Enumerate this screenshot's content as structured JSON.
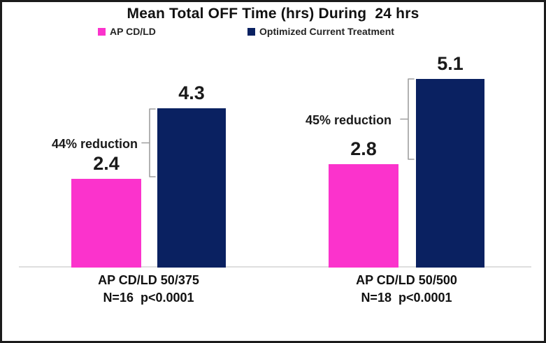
{
  "chart_data": {
    "type": "bar",
    "title": "Mean Total OFF Time (hrs) During  24 hrs",
    "categories": [
      "AP CD/LD 50/375",
      "AP CD/LD 50/500"
    ],
    "category_sublabels": [
      "N=16  p<0.0001",
      "N=18  p<0.0001"
    ],
    "series": [
      {
        "name": "AP CD/LD",
        "color": "#fb33cc",
        "values": [
          2.4,
          2.8
        ]
      },
      {
        "name": "Optimized Current Treatment",
        "color": "#0a2161",
        "values": [
          4.3,
          5.1
        ]
      }
    ],
    "annotations": [
      "44% reduction",
      "45% reduction"
    ],
    "value_labels_shown": true,
    "ylim": [
      0,
      5.5
    ],
    "grid": false,
    "legend_position": "top",
    "axis_line_color": "#dedede",
    "bracket_color": "#9f9f9f",
    "frame_color": "#1b1b1b"
  }
}
